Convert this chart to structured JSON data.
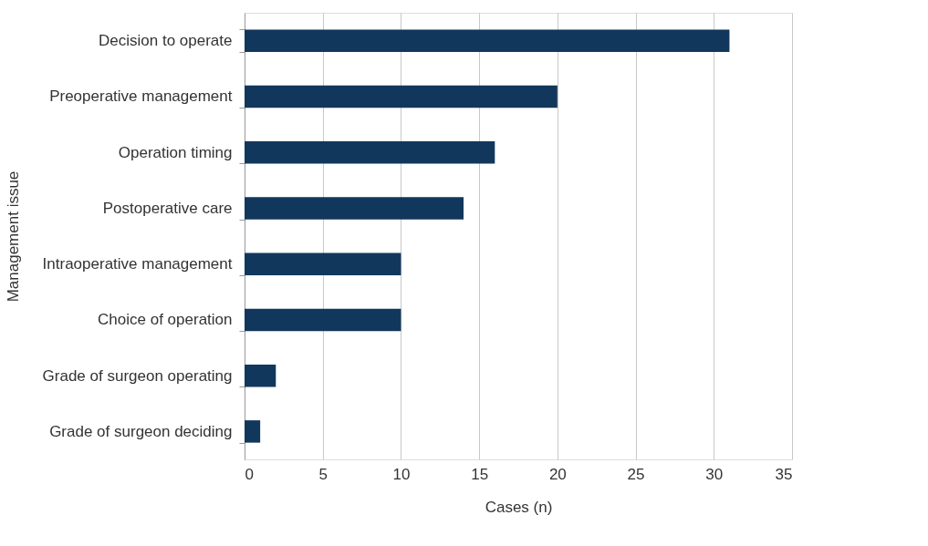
{
  "chart_data": {
    "type": "bar",
    "orientation": "horizontal",
    "xlabel": "Cases (n)",
    "ylabel": "Management issue",
    "categories": [
      "Decision to operate",
      "Preoperative management",
      "Operation timing",
      "Postoperative care",
      "Intraoperative management",
      "Choice of operation",
      "Grade of surgeon operating",
      "Grade of surgeon deciding"
    ],
    "values": [
      31,
      20,
      16,
      14,
      10,
      10,
      2,
      1
    ],
    "color": "#12375c",
    "xlim": [
      0,
      35
    ],
    "xticks": [
      0,
      5,
      10,
      15,
      20,
      25,
      30,
      35
    ],
    "grid": "x"
  }
}
